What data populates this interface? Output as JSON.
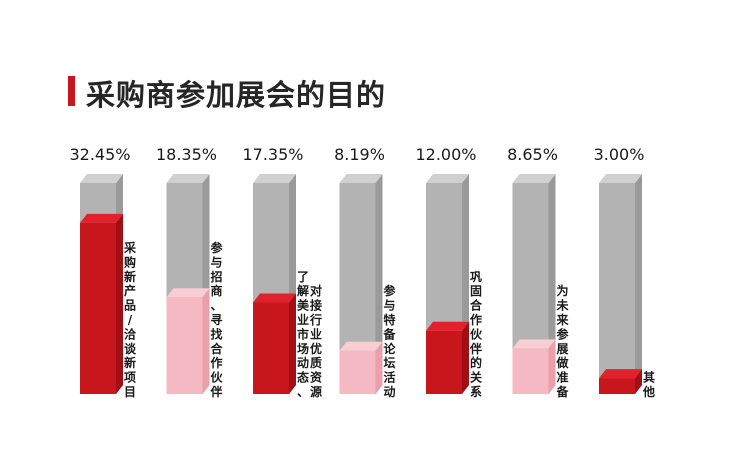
{
  "title": "采购商参加展会的目的",
  "colors": {
    "accent": "#c8161d",
    "red_face": "#c8161d",
    "red_side": "#a10f15",
    "red_top": "#e0232b",
    "pink_face": "#f4b9c2",
    "pink_side": "#e9a0ab",
    "pink_top": "#f8cdd4",
    "gray_face": "#b3b3b3",
    "gray_side": "#9a9a9a",
    "gray_top": "#d0d0d0"
  },
  "chart_data": {
    "type": "bar",
    "title": "采购商参加展会的目的",
    "categories": [
      "采购新产品/洽谈新项目",
      "参与招商、寻找合作伙伴",
      "了解美业市场动态、对接行业优质资源",
      "参与特备论坛活动",
      "巩固合作伙伴的关系",
      "为未来参展做准备",
      "其他"
    ],
    "values": [
      32.45,
      18.35,
      17.35,
      8.19,
      12.0,
      8.65,
      3.0
    ],
    "value_labels": [
      "32.45%",
      "18.35%",
      "17.35%",
      "8.19%",
      "12.00%",
      "8.65%",
      "3.00%"
    ],
    "fill_colors": [
      "red",
      "pink",
      "red",
      "pink",
      "red",
      "pink",
      "red"
    ],
    "xlabel": "",
    "ylabel": ""
  }
}
